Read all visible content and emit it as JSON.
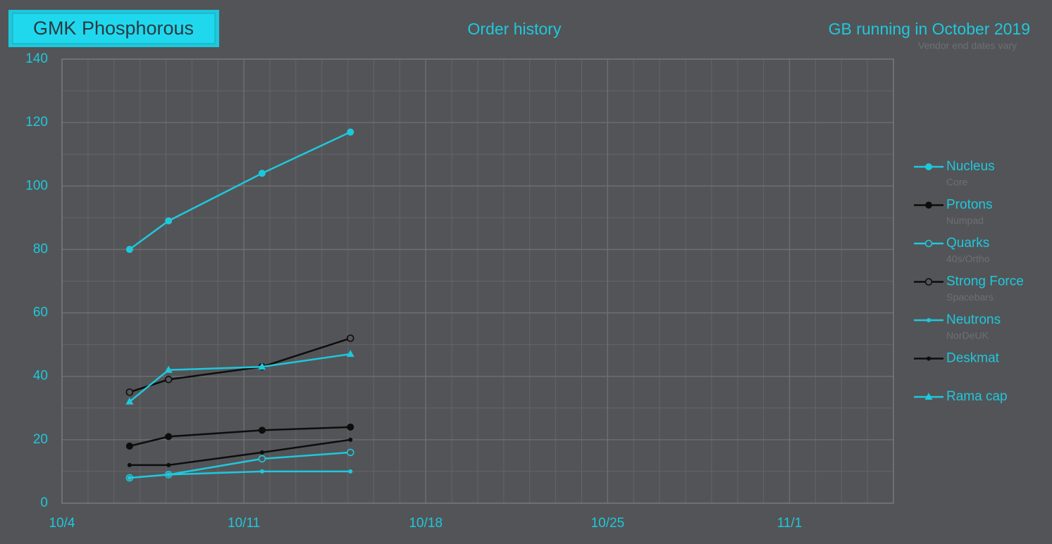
{
  "chart_data": {
    "type": "line",
    "title": "GMK Phosphorous",
    "subtitle": "Order history",
    "annotation": "GB running in October 2019",
    "annotation_note": "Vendor end dates vary",
    "x": [
      6.6,
      8.1,
      11.7,
      15.1
    ],
    "xlim": [
      4,
      36
    ],
    "xticks": [
      {
        "value": 4,
        "label": "10/4"
      },
      {
        "value": 11,
        "label": "10/11"
      },
      {
        "value": 18,
        "label": "10/18"
      },
      {
        "value": 25,
        "label": "10/25"
      },
      {
        "value": 32,
        "label": "11/1"
      }
    ],
    "x_minor_step": 1,
    "ylim": [
      0,
      140
    ],
    "yticks": [
      0,
      20,
      40,
      60,
      80,
      100,
      120,
      140
    ],
    "y_minor_step": 10,
    "grid": true,
    "legend": "right",
    "series": [
      {
        "name": "Nucleus",
        "description": "Core",
        "color": "#1ec8dc",
        "marker": "filled",
        "values": [
          80,
          89,
          104,
          117
        ]
      },
      {
        "name": "Protons",
        "description": "Numpad",
        "color": "#0d0d0d",
        "marker": "filled",
        "values": [
          18,
          21,
          23,
          24
        ]
      },
      {
        "name": "Quarks",
        "description": "40s/Ortho",
        "color": "#1ec8dc",
        "marker": "open",
        "values": [
          8,
          9,
          14,
          16
        ]
      },
      {
        "name": "Strong Force",
        "description": "Spacebars",
        "color": "#0d0d0d",
        "marker": "open",
        "values": [
          35,
          39,
          43,
          52
        ]
      },
      {
        "name": "Neutrons",
        "description": "NorDeUK",
        "color": "#1ec8dc",
        "marker": "dot",
        "values": [
          8,
          9,
          10,
          10
        ]
      },
      {
        "name": "Deskmat",
        "color": "#0d0d0d",
        "marker": "dot",
        "values": [
          12,
          12,
          16,
          20
        ]
      },
      {
        "name": "Rama cap",
        "color": "#1ec8dc",
        "marker": "triangle",
        "values": [
          32,
          42,
          43,
          47
        ]
      }
    ]
  }
}
